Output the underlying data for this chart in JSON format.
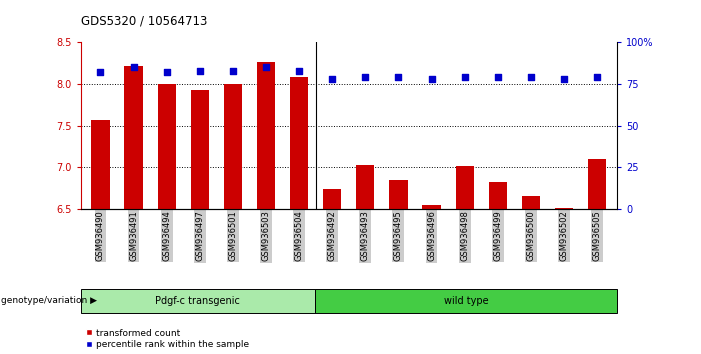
{
  "title": "GDS5320 / 10564713",
  "samples": [
    "GSM936490",
    "GSM936491",
    "GSM936494",
    "GSM936497",
    "GSM936501",
    "GSM936503",
    "GSM936504",
    "GSM936492",
    "GSM936493",
    "GSM936495",
    "GSM936496",
    "GSM936498",
    "GSM936499",
    "GSM936500",
    "GSM936502",
    "GSM936505"
  ],
  "red_values": [
    7.57,
    8.22,
    8.0,
    7.93,
    8.0,
    8.27,
    8.09,
    6.74,
    7.03,
    6.85,
    6.55,
    7.02,
    6.82,
    6.65,
    6.51,
    7.1
  ],
  "blue_values": [
    82,
    85,
    82,
    83,
    83,
    85,
    83,
    78,
    79,
    79,
    78,
    79,
    79,
    79,
    78,
    79
  ],
  "group1_label": "Pdgf-c transgenic",
  "group2_label": "wild type",
  "group1_count": 7,
  "group2_count": 9,
  "group1_color": "#aaeaaa",
  "group2_color": "#44cc44",
  "ylim_left": [
    6.5,
    8.5
  ],
  "ylim_right": [
    0,
    100
  ],
  "yticks_left": [
    6.5,
    7.0,
    7.5,
    8.0,
    8.5
  ],
  "yticks_right": [
    0,
    25,
    50,
    75,
    100
  ],
  "red_color": "#CC0000",
  "blue_color": "#0000CC",
  "bar_width": 0.55,
  "background_color": "#ffffff",
  "tick_bg_color": "#cccccc",
  "legend_red_label": "transformed count",
  "legend_blue_label": "percentile rank within the sample",
  "genotype_label": "genotype/variation"
}
